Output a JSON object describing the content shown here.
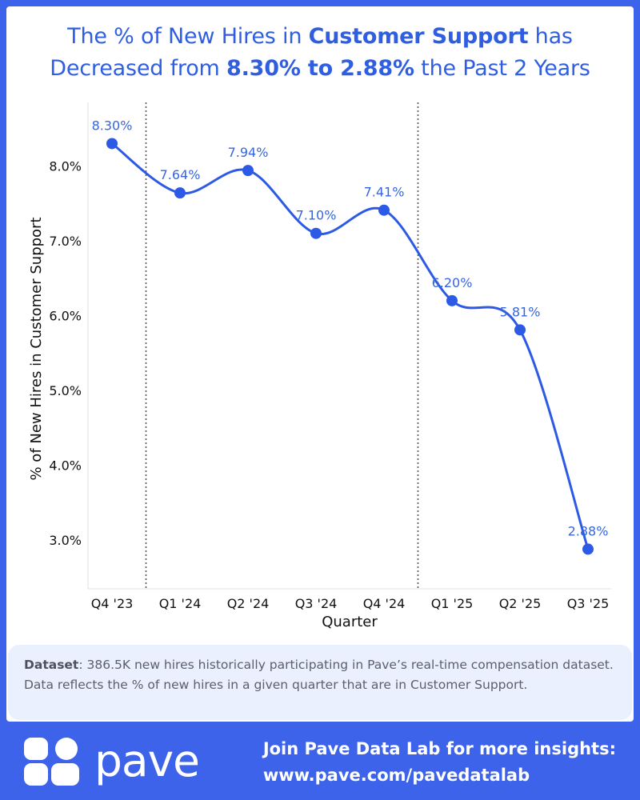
{
  "title": {
    "line1_pre": "The % of New Hires in ",
    "line1_bold": "Customer Support",
    "line1_post": " has",
    "line2_pre": "Decreased from ",
    "line2_bold": "8.30% to 2.88%",
    "line2_post": " the Past 2 Years"
  },
  "chart_data": {
    "type": "line",
    "categories": [
      "Q4 '23",
      "Q1 '24",
      "Q2 '24",
      "Q3 '24",
      "Q4 '24",
      "Q1 '25",
      "Q2 '25",
      "Q3 '25"
    ],
    "values": [
      8.3,
      7.64,
      7.94,
      7.1,
      7.41,
      6.2,
      5.81,
      2.88
    ],
    "data_labels": [
      "8.30%",
      "7.64%",
      "7.94%",
      "7.10%",
      "7.41%",
      "6.20%",
      "5.81%",
      "2.88%"
    ],
    "xlabel": "Quarter",
    "ylabel": "% of New Hires in Customer Support",
    "ylim": [
      2.35,
      8.85
    ],
    "yticks": [
      3.0,
      4.0,
      5.0,
      6.0,
      7.0,
      8.0
    ],
    "ytick_labels": [
      "3.0%",
      "4.0%",
      "5.0%",
      "6.0%",
      "7.0%",
      "8.0%"
    ],
    "separators_after_index": [
      0,
      4
    ],
    "line_color": "#2c5ae6",
    "label_color": "#3666df"
  },
  "note": {
    "label": "Dataset",
    "text": ": 386.5K new hires historically participating in Pave’s real-time compensation dataset. Data reflects the % of new hires in a given quarter that are in Customer Support."
  },
  "footer": {
    "brand": "pave",
    "cta_line1": "Join Pave Data Lab for more insights:",
    "cta_line2": "www.pave.com/pavedatalab"
  }
}
